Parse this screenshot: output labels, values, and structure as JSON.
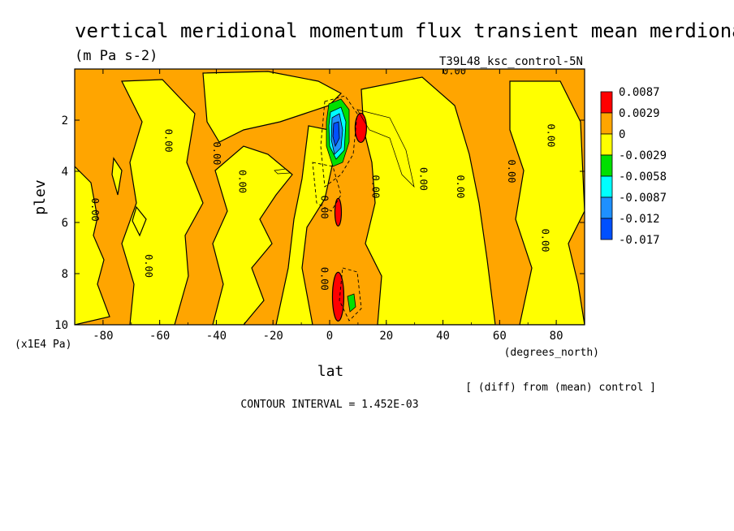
{
  "chart_data": {
    "type": "heatmap",
    "title": "vertical meridional momentum flux transient mean merdional",
    "units": "(m Pa s-2)",
    "run_label": "T39L48_ksc_control-5N",
    "xlabel": "lat",
    "x_units": "(degrees_north)",
    "ylabel": "plev",
    "y_units": "(x1E4 Pa)",
    "xlim": [
      -90,
      90
    ],
    "ylim": [
      10,
      0
    ],
    "x_ticks": [
      "-80",
      "-60",
      "-40",
      "-20",
      "0",
      "20",
      "40",
      "60",
      "80"
    ],
    "x_tick_values": [
      -80,
      -60,
      -40,
      -20,
      0,
      20,
      40,
      60,
      80
    ],
    "y_ticks": [
      "2",
      "4",
      "6",
      "8",
      "10"
    ],
    "y_tick_values": [
      2,
      4,
      6,
      8,
      10
    ],
    "legend_levels": [
      "0.0087",
      "0.0029",
      "0",
      "-0.0029",
      "-0.0058",
      "-0.0087",
      "-0.012",
      "-0.017"
    ],
    "legend_colors": [
      "#ff0000",
      "#ffa500",
      "#ffff00",
      "#00e000",
      "#00ffff",
      "#1e90ff",
      "#0050ff"
    ],
    "background_color": "#ffa500",
    "contour_label": "0.00",
    "contour_label_positions": [
      {
        "lat": -84,
        "plev": 5.5
      },
      {
        "lat": -58,
        "plev": 2.8
      },
      {
        "lat": -41,
        "plev": 3.3
      },
      {
        "lat": -32,
        "plev": 4.4
      },
      {
        "lat": -65,
        "plev": 7.7
      },
      {
        "lat": -20,
        "plev": 0.0
      },
      {
        "lat": -3,
        "plev": 5.4
      },
      {
        "lat": -3,
        "plev": 8.2
      },
      {
        "lat": 15,
        "plev": 4.6
      },
      {
        "lat": 32,
        "plev": 4.3
      },
      {
        "lat": 45,
        "plev": 4.6
      },
      {
        "lat": 44,
        "plev": 0.2
      },
      {
        "lat": 63,
        "plev": 4.0
      },
      {
        "lat": 77,
        "plev": 2.6
      },
      {
        "lat": 75,
        "plev": 6.7
      }
    ],
    "features": [
      {
        "lat": 11,
        "plev": 2.3,
        "level": "0.0087"
      },
      {
        "lat": 3,
        "plev": 2.3,
        "level": "-0.017"
      },
      {
        "lat": 3,
        "plev": 5.6,
        "level": "0.0087"
      },
      {
        "lat": 3,
        "plev": 8.9,
        "level": "0.0087"
      }
    ],
    "footer_note": "[ (diff) from (mean) control ]",
    "contour_interval": "CONTOUR INTERVAL = 1.452E-03"
  }
}
